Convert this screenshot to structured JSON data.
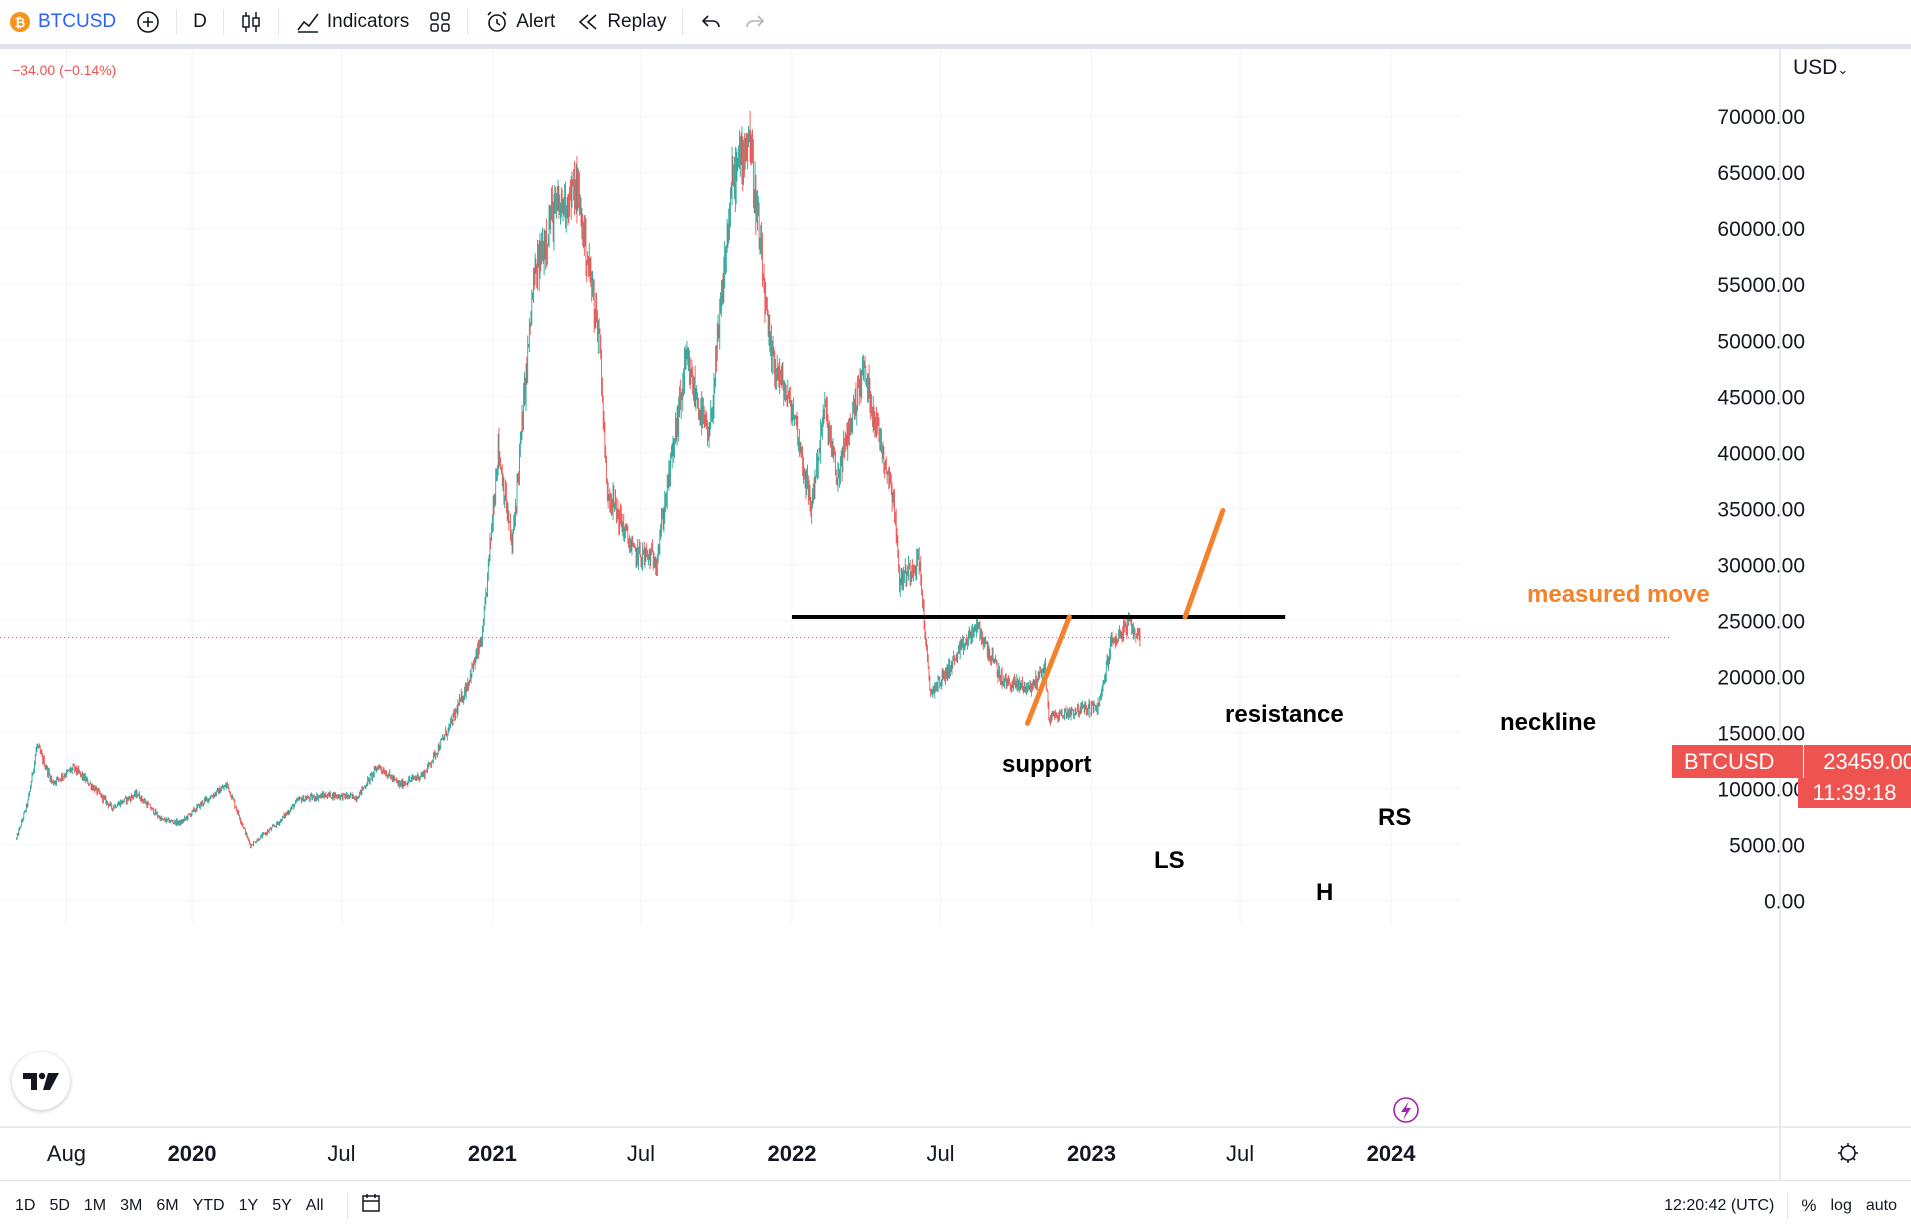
{
  "toolbar": {
    "symbol": "BTCUSD",
    "coin_glyph": "₿",
    "interval": "D",
    "indicators_label": "Indicators",
    "alert_label": "Alert",
    "replay_label": "Replay"
  },
  "change_text": "−34.00 (−0.14%)",
  "currency_label": "USD",
  "price_tag": {
    "symbol": "BTCUSD",
    "value": "23459.00",
    "countdown": "11:39:18"
  },
  "bottombar": {
    "ranges": [
      "1D",
      "5D",
      "1M",
      "3M",
      "6M",
      "YTD",
      "1Y",
      "5Y",
      "All"
    ],
    "clock": "12:20:42 (UTC)",
    "percent_label": "%",
    "log_label": "log",
    "auto_label": "auto"
  },
  "annotations": {
    "resistance": "resistance",
    "support": "support",
    "neckline": "neckline",
    "measured_move": "measured move",
    "ls": "LS",
    "h": "H",
    "rs": "RS"
  },
  "colors": {
    "up": "#26a69a",
    "down": "#ef5350",
    "annotation_orange": "#f5822a",
    "line_black": "#000000"
  },
  "chart_data": {
    "type": "line",
    "title": "",
    "xlabel": "",
    "ylabel": "",
    "series": [
      {
        "values": [
          {
            "t": "2019-06-01",
            "v": 5500
          },
          {
            "t": "2019-06-15",
            "v": 8800
          },
          {
            "t": "2019-06-26",
            "v": 13800
          },
          {
            "t": "2019-07-15",
            "v": 10500
          },
          {
            "t": "2019-08-10",
            "v": 11800
          },
          {
            "t": "2019-09-01",
            "v": 10200
          },
          {
            "t": "2019-09-25",
            "v": 8300
          },
          {
            "t": "2019-10-26",
            "v": 9500
          },
          {
            "t": "2019-11-25",
            "v": 7200
          },
          {
            "t": "2019-12-18",
            "v": 6900
          },
          {
            "t": "2020-01-15",
            "v": 8800
          },
          {
            "t": "2020-02-13",
            "v": 10300
          },
          {
            "t": "2020-03-12",
            "v": 4900
          },
          {
            "t": "2020-04-15",
            "v": 6900
          },
          {
            "t": "2020-05-10",
            "v": 9000
          },
          {
            "t": "2020-06-15",
            "v": 9400
          },
          {
            "t": "2020-07-20",
            "v": 9200
          },
          {
            "t": "2020-08-15",
            "v": 12000
          },
          {
            "t": "2020-09-10",
            "v": 10300
          },
          {
            "t": "2020-10-10",
            "v": 11300
          },
          {
            "t": "2020-11-10",
            "v": 15500
          },
          {
            "t": "2020-12-01",
            "v": 19200
          },
          {
            "t": "2020-12-20",
            "v": 23500
          },
          {
            "t": "2021-01-08",
            "v": 40500
          },
          {
            "t": "2021-01-25",
            "v": 31500
          },
          {
            "t": "2021-02-20",
            "v": 55000
          },
          {
            "t": "2021-03-13",
            "v": 61000
          },
          {
            "t": "2021-04-14",
            "v": 63500
          },
          {
            "t": "2021-05-12",
            "v": 50000
          },
          {
            "t": "2021-05-20",
            "v": 37000
          },
          {
            "t": "2021-06-22",
            "v": 31000
          },
          {
            "t": "2021-07-20",
            "v": 30500
          },
          {
            "t": "2021-08-25",
            "v": 48000
          },
          {
            "t": "2021-09-22",
            "v": 41000
          },
          {
            "t": "2021-10-20",
            "v": 64000
          },
          {
            "t": "2021-11-10",
            "v": 68500
          },
          {
            "t": "2021-12-05",
            "v": 49000
          },
          {
            "t": "2022-01-05",
            "v": 43000
          },
          {
            "t": "2022-01-24",
            "v": 35000
          },
          {
            "t": "2022-02-10",
            "v": 44000
          },
          {
            "t": "2022-02-25",
            "v": 37500
          },
          {
            "t": "2022-03-29",
            "v": 47500
          },
          {
            "t": "2022-05-05",
            "v": 36000
          },
          {
            "t": "2022-05-12",
            "v": 28500
          },
          {
            "t": "2022-06-05",
            "v": 30500
          },
          {
            "t": "2022-06-18",
            "v": 18500
          },
          {
            "t": "2022-07-05",
            "v": 20000
          },
          {
            "t": "2022-08-14",
            "v": 24500
          },
          {
            "t": "2022-09-15",
            "v": 19500
          },
          {
            "t": "2022-10-20",
            "v": 19000
          },
          {
            "t": "2022-11-05",
            "v": 21000
          },
          {
            "t": "2022-11-10",
            "v": 16300
          },
          {
            "t": "2022-12-15",
            "v": 17000
          },
          {
            "t": "2023-01-10",
            "v": 17300
          },
          {
            "t": "2023-01-25",
            "v": 23000
          },
          {
            "t": "2023-02-16",
            "v": 24600
          },
          {
            "t": "2023-03-01",
            "v": 23500
          }
        ]
      }
    ],
    "x_tick_labels": [
      {
        "t": "2019-08-01",
        "label": "Aug",
        "bold": false
      },
      {
        "t": "2020-01-01",
        "label": "2020",
        "bold": true
      },
      {
        "t": "2020-07-01",
        "label": "Jul",
        "bold": false
      },
      {
        "t": "2021-01-01",
        "label": "2021",
        "bold": true
      },
      {
        "t": "2021-07-01",
        "label": "Jul",
        "bold": false
      },
      {
        "t": "2022-01-01",
        "label": "2022",
        "bold": true
      },
      {
        "t": "2022-07-01",
        "label": "Jul",
        "bold": false
      },
      {
        "t": "2023-01-01",
        "label": "2023",
        "bold": true
      },
      {
        "t": "2023-07-01",
        "label": "Jul",
        "bold": false
      },
      {
        "t": "2024-01-01",
        "label": "2024",
        "bold": true
      }
    ],
    "y_tick_labels": [
      "0.00",
      "5000.00",
      "10000.00",
      "15000.00",
      "20000.00",
      "25000.00",
      "30000.00",
      "35000.00",
      "40000.00",
      "45000.00",
      "50000.00",
      "55000.00",
      "60000.00",
      "65000.00",
      "70000.00"
    ],
    "ylim": [
      -2200,
      76000
    ],
    "xlim": [
      "2019-05-12",
      "2024-03-25"
    ],
    "current_price": 23459,
    "neckline": {
      "from": "2022-01-01",
      "to": "2023-08-25",
      "value": 25300
    },
    "resistance_line": {
      "from": {
        "t": "2022-10-15",
        "v": 15800
      },
      "to": {
        "t": "2022-12-05",
        "v": 25300
      }
    },
    "measured_move_line": {
      "from": {
        "t": "2023-04-25",
        "v": 25300
      },
      "to": {
        "t": "2023-06-10",
        "v": 34800
      }
    },
    "grid": true,
    "legend": "none"
  }
}
